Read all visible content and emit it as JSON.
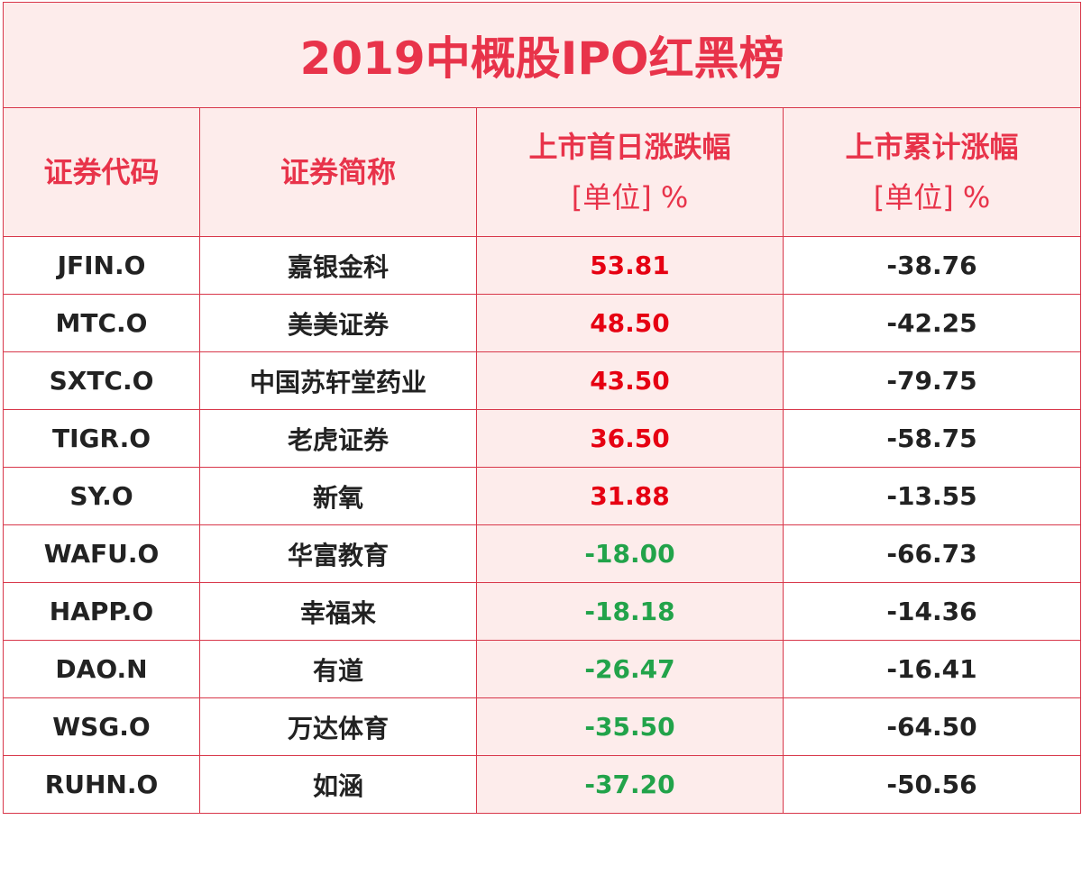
{
  "title": "2019中概股IPO红黑榜",
  "headers": {
    "code": "证券代码",
    "name": "证券简称",
    "first_day": "上市首日涨跌幅",
    "first_day_unit": "[单位] %",
    "cumulative": "上市累计涨幅",
    "cumulative_unit": "[单位] %"
  },
  "rows": [
    {
      "code": "JFIN.O",
      "name": "嘉银金科",
      "first_day": "53.81",
      "cumulative": "-38.76"
    },
    {
      "code": "MTC.O",
      "name": "美美证券",
      "first_day": "48.50",
      "cumulative": "-42.25"
    },
    {
      "code": "SXTC.O",
      "name": "中国苏轩堂药业",
      "first_day": "43.50",
      "cumulative": "-79.75"
    },
    {
      "code": "TIGR.O",
      "name": "老虎证券",
      "first_day": "36.50",
      "cumulative": "-58.75"
    },
    {
      "code": "SY.O",
      "name": "新氧",
      "first_day": "31.88",
      "cumulative": "-13.55"
    },
    {
      "code": "WAFU.O",
      "name": "华富教育",
      "first_day": "-18.00",
      "cumulative": "-66.73"
    },
    {
      "code": "HAPP.O",
      "name": "幸福来",
      "first_day": "-18.18",
      "cumulative": "-14.36"
    },
    {
      "code": "DAO.N",
      "name": "有道",
      "first_day": "-26.47",
      "cumulative": "-16.41"
    },
    {
      "code": "WSG.O",
      "name": "万达体育",
      "first_day": "-35.50",
      "cumulative": "-64.50"
    },
    {
      "code": "RUHN.O",
      "name": "如涵",
      "first_day": "-37.20",
      "cumulative": "-50.56"
    }
  ],
  "colors": {
    "accent": "#e8334a",
    "header_bg": "#fdeceb",
    "positive": "#e60012",
    "negative": "#22a34a"
  }
}
